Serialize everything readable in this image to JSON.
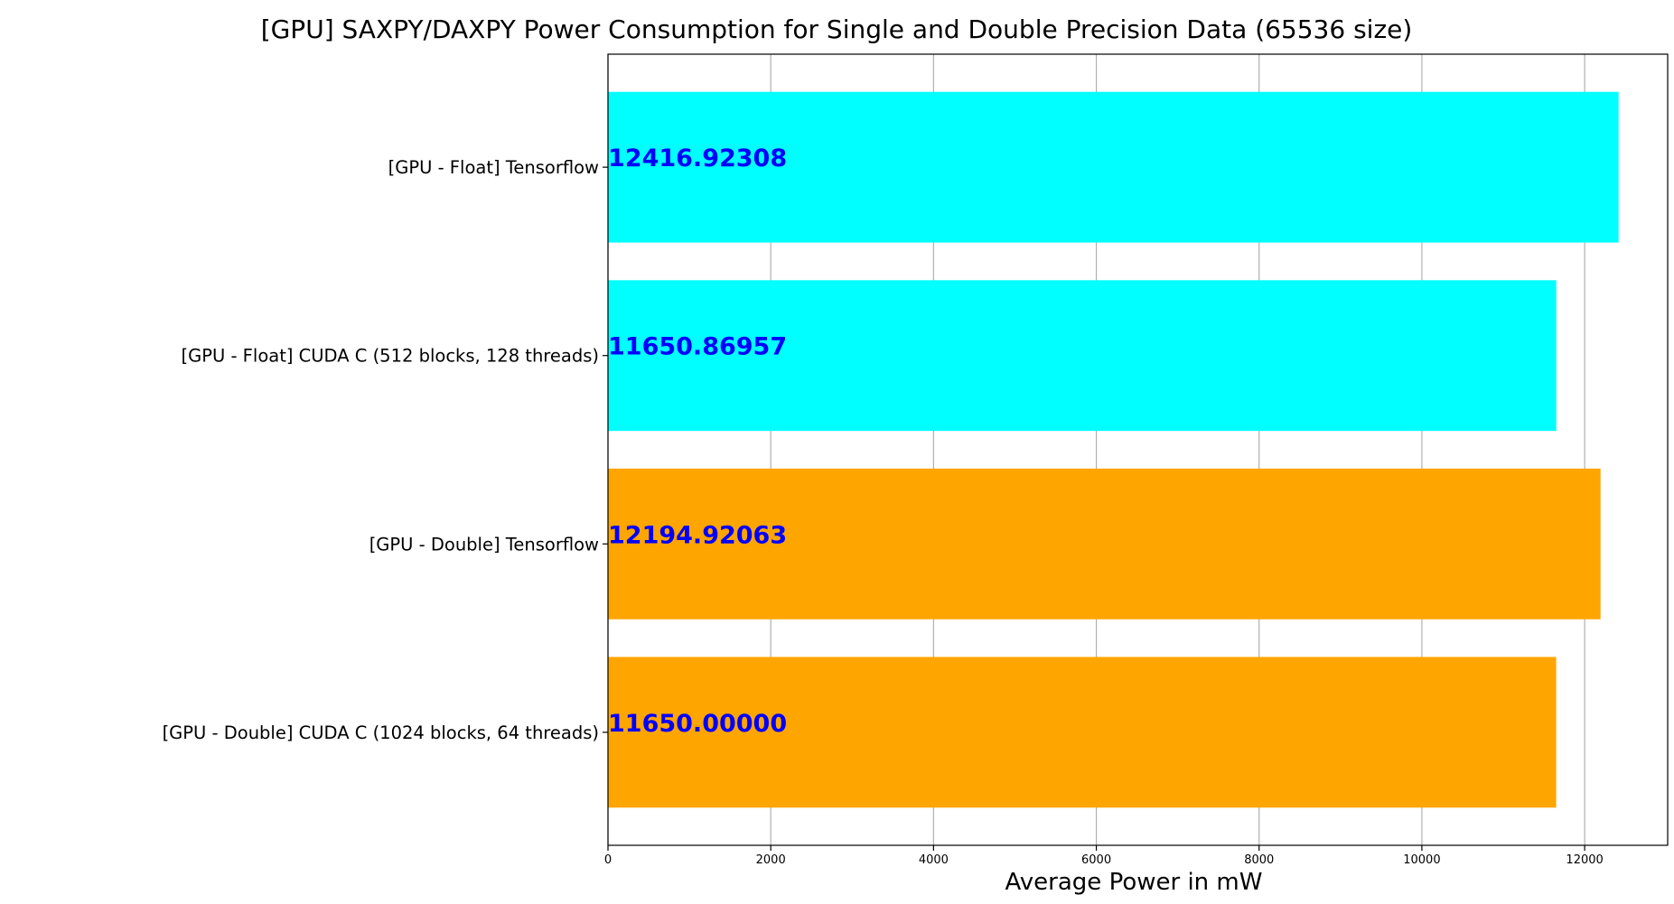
{
  "chart_data": {
    "type": "bar",
    "orientation": "horizontal",
    "title": "[GPU] SAXPY/DAXPY Power Consumption for Single and Double Precision Data (65536 size)",
    "xlabel": "Average Power in mW",
    "ylabel": "",
    "categories": [
      "[GPU - Float] Tensorflow",
      "[GPU - Float] CUDA C (512 blocks, 128 threads)",
      "[GPU - Double] Tensorflow",
      "[GPU - Double] CUDA C (1024 blocks, 64 threads)"
    ],
    "values": [
      12416.92308,
      11650.86957,
      12194.92063,
      11650.0
    ],
    "data_labels": [
      "12416.92308",
      "11650.86957",
      "12194.92063",
      "11650.00000"
    ],
    "bar_colors": [
      "#00ffff",
      "#00ffff",
      "#ffa500",
      "#ffa500"
    ],
    "data_label_color": "#0000ff",
    "xlim": [
      0,
      13020
    ],
    "xticks": [
      0,
      2000,
      4000,
      6000,
      8000,
      10000,
      12000
    ],
    "xtick_labels": [
      "0",
      "2000",
      "4000",
      "6000",
      "8000",
      "10000",
      "12000"
    ],
    "grid": "vertical",
    "grid_color": "#b0b0b0",
    "legend": "none"
  }
}
